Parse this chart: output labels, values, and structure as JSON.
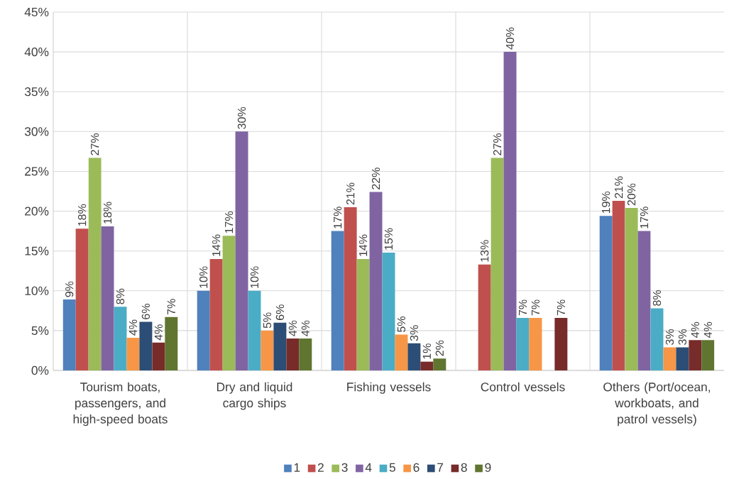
{
  "chart_data": {
    "type": "bar",
    "categories": [
      "Tourism boats, passengers, and high-speed boats",
      "Dry and liquid cargo ships",
      "Fishing vessels",
      "Control vessels",
      "Others (Port/ocean, workboats, and patrol vessels)"
    ],
    "series": [
      {
        "name": "1",
        "color": "#4f81bd",
        "values": [
          8.9,
          10.0,
          17.5,
          null,
          19.4
        ],
        "value_labels": [
          "9%",
          "10%",
          "17%",
          null,
          "19%"
        ]
      },
      {
        "name": "2",
        "color": "#c0504d",
        "values": [
          17.8,
          14.0,
          20.5,
          13.3,
          21.3
        ],
        "value_labels": [
          "18%",
          "14%",
          "21%",
          "13%",
          "21%"
        ]
      },
      {
        "name": "3",
        "color": "#9bbb59",
        "values": [
          26.7,
          16.9,
          14.0,
          26.7,
          20.4
        ],
        "value_labels": [
          "27%",
          "17%",
          "14%",
          "27%",
          "20%"
        ]
      },
      {
        "name": "4",
        "color": "#8064a2",
        "values": [
          18.1,
          30.0,
          22.4,
          40.0,
          17.5
        ],
        "value_labels": [
          "18%",
          "30%",
          "22%",
          "40%",
          "17%"
        ]
      },
      {
        "name": "5",
        "color": "#4bacc6",
        "values": [
          8.0,
          10.0,
          14.8,
          6.6,
          7.8
        ],
        "value_labels": [
          "8%",
          "10%",
          "15%",
          "7%",
          "8%"
        ]
      },
      {
        "name": "6",
        "color": "#f79646",
        "values": [
          4.1,
          5.0,
          4.5,
          6.6,
          2.9
        ],
        "value_labels": [
          "4%",
          "5%",
          "5%",
          "7%",
          "3%"
        ]
      },
      {
        "name": "7",
        "color": "#2c4d75",
        "values": [
          6.1,
          6.0,
          3.4,
          null,
          2.9
        ],
        "value_labels": [
          "6%",
          "6%",
          "3%",
          null,
          "3%"
        ]
      },
      {
        "name": "8",
        "color": "#772c2a",
        "values": [
          3.5,
          4.0,
          1.1,
          6.6,
          3.8
        ],
        "value_labels": [
          "4%",
          "4%",
          "1%",
          "7%",
          "4%"
        ]
      },
      {
        "name": "9",
        "color": "#5f7530",
        "values": [
          6.7,
          4.0,
          1.5,
          null,
          3.8
        ],
        "value_labels": [
          "7%",
          "4%",
          "2%",
          null,
          "4%"
        ]
      }
    ],
    "ylim": [
      0,
      45
    ],
    "yticks": [
      {
        "value": 0,
        "label": "0%"
      },
      {
        "value": 5,
        "label": "5%"
      },
      {
        "value": 10,
        "label": "10%"
      },
      {
        "value": 15,
        "label": "15%"
      },
      {
        "value": 20,
        "label": "20%"
      },
      {
        "value": 25,
        "label": "25%"
      },
      {
        "value": 30,
        "label": "30%"
      },
      {
        "value": 35,
        "label": "35%"
      },
      {
        "value": 40,
        "label": "40%"
      },
      {
        "value": 45,
        "label": "45%"
      }
    ],
    "grid": true,
    "legend": "bottom"
  }
}
